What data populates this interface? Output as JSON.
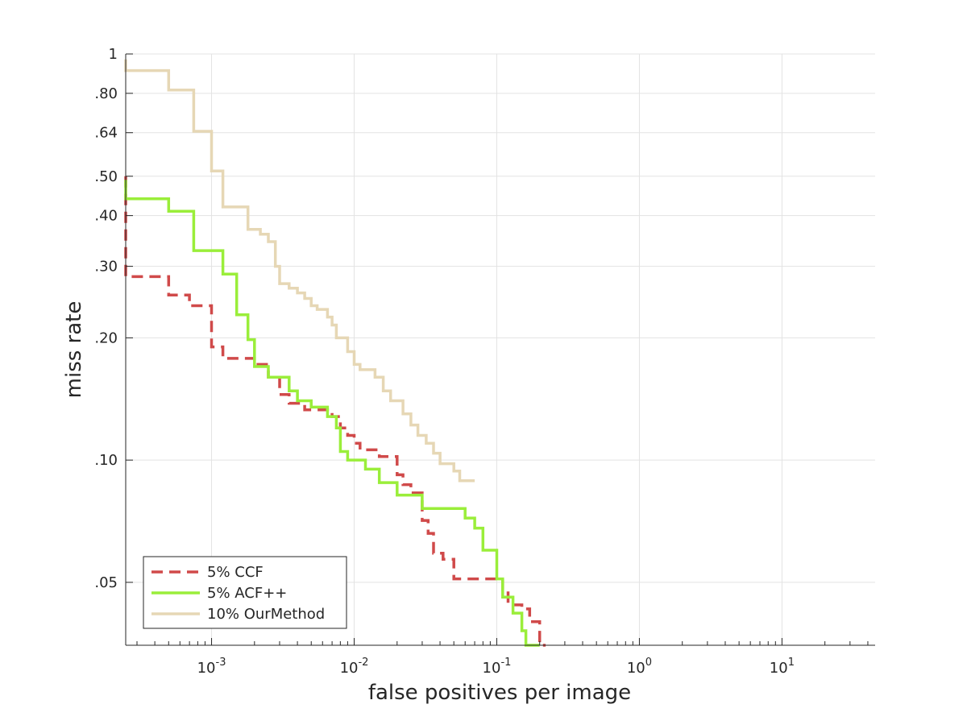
{
  "chart_data": {
    "type": "line",
    "title": "",
    "xlabel": "false positives per image",
    "ylabel": "miss rate",
    "xscale": "log",
    "yscale": "log",
    "xlim": [
      0.00025,
      45
    ],
    "ylim": [
      0.035,
      1
    ],
    "grid": true,
    "legend_position": "bottom-left",
    "x_ticks": [
      {
        "value": 0.001,
        "base": "10",
        "exp": "-3"
      },
      {
        "value": 0.01,
        "base": "10",
        "exp": "-2"
      },
      {
        "value": 0.1,
        "base": "10",
        "exp": "-1"
      },
      {
        "value": 1,
        "base": "10",
        "exp": "0"
      },
      {
        "value": 10,
        "base": "10",
        "exp": "1"
      }
    ],
    "y_ticks": [
      {
        "value": 1,
        "label": "1"
      },
      {
        "value": 0.8,
        "label": ".80"
      },
      {
        "value": 0.64,
        "label": ".64"
      },
      {
        "value": 0.5,
        "label": ".50"
      },
      {
        "value": 0.4,
        "label": ".40"
      },
      {
        "value": 0.3,
        "label": ".30"
      },
      {
        "value": 0.2,
        "label": ".20"
      },
      {
        "value": 0.1,
        "label": ".10"
      },
      {
        "value": 0.05,
        "label": ".05"
      }
    ],
    "series": [
      {
        "name": "5% CCF",
        "color": "#d04a4a",
        "dash": "dashed",
        "points": [
          [
            0.00025,
            0.5
          ],
          [
            0.00025,
            0.4
          ],
          [
            0.00025,
            0.3
          ],
          [
            0.00025,
            0.283
          ],
          [
            0.0005,
            0.283
          ],
          [
            0.0005,
            0.255
          ],
          [
            0.0007,
            0.255
          ],
          [
            0.0007,
            0.24
          ],
          [
            0.001,
            0.24
          ],
          [
            0.001,
            0.19
          ],
          [
            0.0012,
            0.19
          ],
          [
            0.0012,
            0.178
          ],
          [
            0.002,
            0.178
          ],
          [
            0.002,
            0.172
          ],
          [
            0.0025,
            0.172
          ],
          [
            0.0025,
            0.16
          ],
          [
            0.003,
            0.16
          ],
          [
            0.003,
            0.145
          ],
          [
            0.0035,
            0.145
          ],
          [
            0.0035,
            0.138
          ],
          [
            0.0045,
            0.138
          ],
          [
            0.0045,
            0.133
          ],
          [
            0.007,
            0.133
          ],
          [
            0.007,
            0.128
          ],
          [
            0.008,
            0.128
          ],
          [
            0.008,
            0.12
          ],
          [
            0.009,
            0.12
          ],
          [
            0.009,
            0.115
          ],
          [
            0.01,
            0.115
          ],
          [
            0.01,
            0.11
          ],
          [
            0.011,
            0.11
          ],
          [
            0.011,
            0.106
          ],
          [
            0.015,
            0.106
          ],
          [
            0.015,
            0.102
          ],
          [
            0.02,
            0.102
          ],
          [
            0.02,
            0.092
          ],
          [
            0.022,
            0.092
          ],
          [
            0.022,
            0.087
          ],
          [
            0.025,
            0.087
          ],
          [
            0.025,
            0.083
          ],
          [
            0.03,
            0.083
          ],
          [
            0.03,
            0.071
          ],
          [
            0.033,
            0.071
          ],
          [
            0.033,
            0.066
          ],
          [
            0.036,
            0.066
          ],
          [
            0.036,
            0.059
          ],
          [
            0.042,
            0.059
          ],
          [
            0.042,
            0.057
          ],
          [
            0.05,
            0.057
          ],
          [
            0.05,
            0.051
          ],
          [
            0.11,
            0.051
          ],
          [
            0.11,
            0.048
          ],
          [
            0.12,
            0.048
          ],
          [
            0.12,
            0.044
          ],
          [
            0.15,
            0.044
          ],
          [
            0.15,
            0.043
          ],
          [
            0.17,
            0.043
          ],
          [
            0.17,
            0.04
          ],
          [
            0.2,
            0.04
          ],
          [
            0.2,
            0.035
          ],
          [
            0.22,
            0.035
          ]
        ]
      },
      {
        "name": "5% ACF++",
        "color": "#9aee3a",
        "dash": "solid",
        "points": [
          [
            0.00025,
            0.49
          ],
          [
            0.00025,
            0.44
          ],
          [
            0.0005,
            0.44
          ],
          [
            0.0005,
            0.41
          ],
          [
            0.00075,
            0.41
          ],
          [
            0.00075,
            0.328
          ],
          [
            0.0012,
            0.328
          ],
          [
            0.0012,
            0.287
          ],
          [
            0.0015,
            0.287
          ],
          [
            0.0015,
            0.228
          ],
          [
            0.0018,
            0.228
          ],
          [
            0.0018,
            0.198
          ],
          [
            0.002,
            0.198
          ],
          [
            0.002,
            0.17
          ],
          [
            0.0025,
            0.17
          ],
          [
            0.0025,
            0.16
          ],
          [
            0.0035,
            0.16
          ],
          [
            0.0035,
            0.148
          ],
          [
            0.004,
            0.148
          ],
          [
            0.004,
            0.14
          ],
          [
            0.005,
            0.14
          ],
          [
            0.005,
            0.135
          ],
          [
            0.0065,
            0.135
          ],
          [
            0.0065,
            0.128
          ],
          [
            0.0075,
            0.128
          ],
          [
            0.0075,
            0.12
          ],
          [
            0.008,
            0.12
          ],
          [
            0.008,
            0.105
          ],
          [
            0.009,
            0.105
          ],
          [
            0.009,
            0.1
          ],
          [
            0.012,
            0.1
          ],
          [
            0.012,
            0.095
          ],
          [
            0.015,
            0.095
          ],
          [
            0.015,
            0.088
          ],
          [
            0.02,
            0.088
          ],
          [
            0.02,
            0.082
          ],
          [
            0.03,
            0.082
          ],
          [
            0.03,
            0.076
          ],
          [
            0.06,
            0.076
          ],
          [
            0.06,
            0.072
          ],
          [
            0.07,
            0.072
          ],
          [
            0.07,
            0.068
          ],
          [
            0.08,
            0.068
          ],
          [
            0.08,
            0.06
          ],
          [
            0.1,
            0.06
          ],
          [
            0.1,
            0.051
          ],
          [
            0.11,
            0.051
          ],
          [
            0.11,
            0.046
          ],
          [
            0.13,
            0.046
          ],
          [
            0.13,
            0.042
          ],
          [
            0.15,
            0.042
          ],
          [
            0.15,
            0.038
          ],
          [
            0.16,
            0.038
          ],
          [
            0.16,
            0.035
          ],
          [
            0.2,
            0.035
          ]
        ]
      },
      {
        "name": "10% OurMethod",
        "color": "#e6d7b5",
        "dash": "solid",
        "points": [
          [
            0.00025,
            0.97
          ],
          [
            0.00025,
            0.91
          ],
          [
            0.0005,
            0.91
          ],
          [
            0.0005,
            0.815
          ],
          [
            0.00075,
            0.815
          ],
          [
            0.00075,
            0.645
          ],
          [
            0.001,
            0.645
          ],
          [
            0.001,
            0.515
          ],
          [
            0.0012,
            0.515
          ],
          [
            0.0012,
            0.42
          ],
          [
            0.0018,
            0.42
          ],
          [
            0.0018,
            0.37
          ],
          [
            0.0022,
            0.37
          ],
          [
            0.0022,
            0.36
          ],
          [
            0.0025,
            0.36
          ],
          [
            0.0025,
            0.345
          ],
          [
            0.0028,
            0.345
          ],
          [
            0.0028,
            0.3
          ],
          [
            0.003,
            0.3
          ],
          [
            0.003,
            0.272
          ],
          [
            0.0035,
            0.272
          ],
          [
            0.0035,
            0.265
          ],
          [
            0.004,
            0.265
          ],
          [
            0.004,
            0.258
          ],
          [
            0.0045,
            0.258
          ],
          [
            0.0045,
            0.25
          ],
          [
            0.005,
            0.25
          ],
          [
            0.005,
            0.24
          ],
          [
            0.0055,
            0.24
          ],
          [
            0.0055,
            0.235
          ],
          [
            0.0065,
            0.235
          ],
          [
            0.0065,
            0.225
          ],
          [
            0.007,
            0.225
          ],
          [
            0.007,
            0.215
          ],
          [
            0.0075,
            0.215
          ],
          [
            0.0075,
            0.2
          ],
          [
            0.009,
            0.2
          ],
          [
            0.009,
            0.185
          ],
          [
            0.01,
            0.185
          ],
          [
            0.01,
            0.172
          ],
          [
            0.011,
            0.172
          ],
          [
            0.011,
            0.167
          ],
          [
            0.014,
            0.167
          ],
          [
            0.014,
            0.16
          ],
          [
            0.016,
            0.16
          ],
          [
            0.016,
            0.148
          ],
          [
            0.018,
            0.148
          ],
          [
            0.018,
            0.14
          ],
          [
            0.022,
            0.14
          ],
          [
            0.022,
            0.13
          ],
          [
            0.025,
            0.13
          ],
          [
            0.025,
            0.122
          ],
          [
            0.028,
            0.122
          ],
          [
            0.028,
            0.115
          ],
          [
            0.032,
            0.115
          ],
          [
            0.032,
            0.11
          ],
          [
            0.036,
            0.11
          ],
          [
            0.036,
            0.104
          ],
          [
            0.04,
            0.104
          ],
          [
            0.04,
            0.098
          ],
          [
            0.05,
            0.098
          ],
          [
            0.05,
            0.094
          ],
          [
            0.055,
            0.094
          ],
          [
            0.055,
            0.089
          ],
          [
            0.07,
            0.089
          ]
        ]
      }
    ]
  }
}
